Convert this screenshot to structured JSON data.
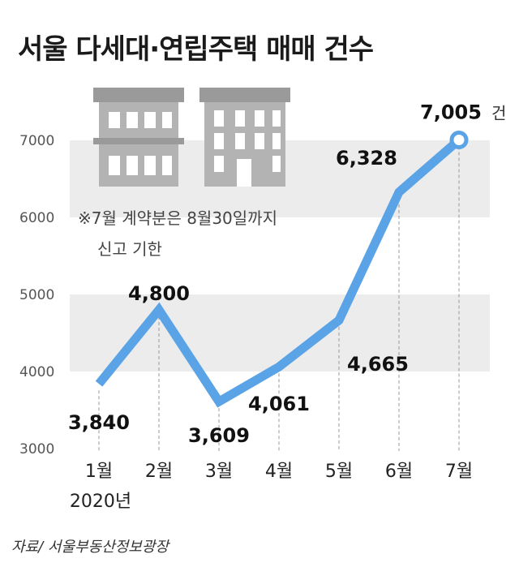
{
  "chart_data": {
    "type": "line",
    "title": "서울 다세대·연립주택 매매 건수",
    "categories": [
      "1월",
      "2월",
      "3월",
      "4월",
      "5월",
      "6월",
      "7월"
    ],
    "year_label": "2020년",
    "values": [
      3840,
      4800,
      3609,
      4061,
      4665,
      6328,
      7005
    ],
    "value_labels": [
      "3,840",
      "4,800",
      "3,609",
      "4,061",
      "4,665",
      "6,328",
      "7,005"
    ],
    "unit": "건",
    "ylim": [
      3000,
      7000
    ],
    "yticks": [
      "3000",
      "4000",
      "5000",
      "6000",
      "7000"
    ],
    "grid": false,
    "note_lines": [
      "※7월 계약분은 8월30일까지",
      "신고 기한"
    ],
    "colors": {
      "line": "#5aa3e6",
      "band": "#ececec",
      "icon": "#b3b3b3",
      "icon_dark": "#9a9a9a",
      "guide": "#999999"
    }
  },
  "source": "자료/ 서울부동산정보광장",
  "icons": [
    "building-icon-left",
    "building-icon-right"
  ]
}
